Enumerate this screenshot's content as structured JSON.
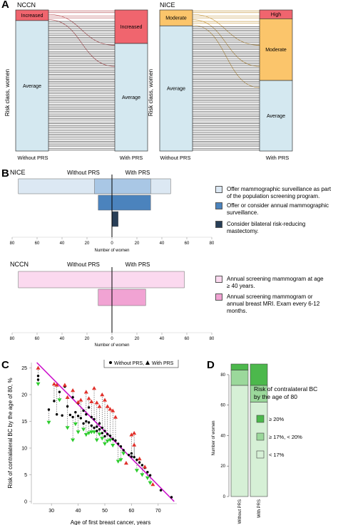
{
  "panels": {
    "a": "A",
    "b": "B",
    "c": "C",
    "d": "D"
  },
  "sankey": {
    "ylabel": "Risk class, women",
    "without": "Without PRS",
    "with": "With PRS",
    "nccn": {
      "title": "NCCN",
      "left": [
        {
          "label": "Increased",
          "count": 6,
          "color": "#f0656e"
        },
        {
          "label": "Average",
          "count": 74,
          "color": "#d4e8f0"
        }
      ],
      "right": [
        {
          "label": "Increased",
          "count": 19,
          "color": "#f0656e"
        },
        {
          "label": "Average",
          "count": 61,
          "color": "#d4e8f0"
        }
      ]
    },
    "nice": {
      "title": "NICE",
      "left": [
        {
          "label": "Moderate",
          "count": 9,
          "color": "#fbc56b"
        },
        {
          "label": "Average",
          "count": 71,
          "color": "#d4e8f0"
        }
      ],
      "right": [
        {
          "label": "High",
          "count": 5,
          "color": "#f0656e"
        },
        {
          "label": "Moderate",
          "count": 35,
          "color": "#fbc56b"
        },
        {
          "label": "Average",
          "count": 40,
          "color": "#d4e8f0"
        }
      ]
    }
  },
  "bars_b": {
    "without": "Without PRS",
    "with": "With PRS",
    "xlabel": "Number of women",
    "ticks": [
      "80",
      "60",
      "40",
      "20",
      "0",
      "20",
      "40",
      "60",
      "80"
    ],
    "nice": {
      "title": "NICE",
      "legend": [
        {
          "label": "Offer mammographic surveillance as part of the population screening program.",
          "color": "#dce8f3"
        },
        {
          "label": "Offer or consider annual mammographic surveillance.",
          "color": "#4b83bd"
        },
        {
          "label": "Consider bilateral risk-reducing mastectomy.",
          "color": "#273e57"
        }
      ]
    },
    "nccn": {
      "title": "NCCN",
      "legend": [
        {
          "label": "Annual screening mammogram at age ≥ 40 years.",
          "color": "#fbd9ef"
        },
        {
          "label": "Annual screening mammogram or annual breast MRI. Exam every 6-12 months.",
          "color": "#f1a3d3"
        }
      ]
    }
  },
  "scatter_c": {
    "xlabel": "Age of first breast cancer, years",
    "ylabel": "Risk of contralateral BC by the age of 80, %",
    "legend_without": "Without PRS,",
    "legend_with": "With PRS",
    "xticks": [
      "30",
      "40",
      "50",
      "60",
      "70"
    ],
    "yticks": [
      "0",
      "5",
      "10",
      "15",
      "20",
      "25"
    ]
  },
  "stack_d": {
    "ylabel": "Number of women",
    "categories": [
      "Without PRS",
      "With PRS"
    ],
    "yticks": [
      "0",
      "20",
      "40",
      "60",
      "80"
    ],
    "legend_title": "Risk of contralateral BC by the age of 80",
    "legend": [
      {
        "label": "≥ 20%",
        "color": "#4cb84c"
      },
      {
        "label": "≥ 17%, < 20%",
        "color": "#9bd89b"
      },
      {
        "label": "< 17%",
        "color": "#d6f0d6"
      }
    ]
  },
  "chart_data": [
    {
      "type": "bar",
      "title": "NCCN",
      "ylabel": "Risk class, women",
      "categories": [
        "Without PRS",
        "With PRS"
      ],
      "series": [
        {
          "name": "Increased",
          "values": [
            6,
            19
          ]
        },
        {
          "name": "Average",
          "values": [
            74,
            61
          ]
        }
      ]
    },
    {
      "type": "bar",
      "title": "NICE",
      "ylabel": "Risk class, women",
      "categories": [
        "Without PRS",
        "With PRS"
      ],
      "series": [
        {
          "name": "High",
          "values": [
            0,
            5
          ]
        },
        {
          "name": "Moderate",
          "values": [
            9,
            35
          ]
        },
        {
          "name": "Average",
          "values": [
            71,
            40
          ]
        }
      ]
    },
    {
      "type": "bar",
      "title": "NICE",
      "xlabel": "Number of women",
      "xlim": [
        -80,
        80
      ],
      "categories": [
        "Offer mammographic surveillance as part of the population screening program.",
        "Offer or consider annual mammographic surveillance.",
        "Consider bilateral risk-reducing mastectomy."
      ],
      "series": [
        {
          "name": "Without PRS",
          "values": [
            75,
            11,
            0
          ]
        },
        {
          "name": "With PRS",
          "values": [
            47,
            31,
            5
          ]
        }
      ]
    },
    {
      "type": "bar",
      "title": "NCCN",
      "xlabel": "Number of women",
      "xlim": [
        -80,
        80
      ],
      "categories": [
        "Annual screening mammogram at age ≥ 40 years.",
        "Annual screening mammogram or annual breast MRI. Exam every 6-12 months."
      ],
      "series": [
        {
          "name": "Without PRS",
          "values": [
            75,
            11
          ]
        },
        {
          "name": "With PRS",
          "values": [
            58,
            27
          ]
        }
      ]
    },
    {
      "type": "scatter",
      "xlabel": "Age of first breast cancer, years",
      "ylabel": "Risk of contralateral BC by the age of 80, %",
      "xlim": [
        23,
        77
      ],
      "ylim": [
        0,
        26
      ],
      "series": [
        {
          "name": "Without PRS",
          "points": [
            [
              25,
              23.5
            ],
            [
              25,
              22.8
            ],
            [
              29,
              17.2
            ],
            [
              31,
              18.8
            ],
            [
              32,
              16.3
            ],
            [
              33,
              20.5
            ],
            [
              34,
              16.1
            ],
            [
              35,
              21.5
            ],
            [
              36,
              17.8
            ],
            [
              37,
              16.2
            ],
            [
              38,
              15.8
            ],
            [
              38,
              19.5
            ],
            [
              39,
              16.7
            ],
            [
              40,
              16.0
            ],
            [
              40,
              18.4
            ],
            [
              41,
              15.6
            ],
            [
              42,
              17.0
            ],
            [
              42,
              14.6
            ],
            [
              43,
              16.3
            ],
            [
              43,
              15.0
            ],
            [
              44,
              14.8
            ],
            [
              44,
              17.6
            ],
            [
              45,
              14.2
            ],
            [
              45,
              15.8
            ],
            [
              46,
              13.8
            ],
            [
              46,
              15.4
            ],
            [
              47,
              14.0
            ],
            [
              47,
              13.2
            ],
            [
              48,
              13.5
            ],
            [
              48,
              14.6
            ],
            [
              49,
              12.8
            ],
            [
              49,
              13.8
            ],
            [
              50,
              13.2
            ],
            [
              50,
              12.2
            ],
            [
              51,
              12.6
            ],
            [
              52,
              12.3
            ],
            [
              53,
              11.7
            ],
            [
              54,
              11.4
            ],
            [
              55,
              10.8
            ],
            [
              56,
              10.3
            ],
            [
              57,
              9.6
            ],
            [
              59,
              8.7
            ],
            [
              60,
              9.0
            ],
            [
              60,
              8.4
            ],
            [
              61,
              8.3
            ],
            [
              62,
              7.8
            ],
            [
              63,
              7.3
            ],
            [
              64,
              6.8
            ],
            [
              65,
              6.3
            ],
            [
              66,
              5.5
            ],
            [
              67,
              4.9
            ],
            [
              71,
              2.1
            ],
            [
              75,
              0.8
            ]
          ]
        },
        {
          "name": "With PRS",
          "points": [
            [
              25,
              25.0
            ],
            [
              25,
              22.0
            ],
            [
              29,
              14.8
            ],
            [
              31,
              22.0
            ],
            [
              32,
              21.8
            ],
            [
              33,
              19.0
            ],
            [
              35,
              21.8
            ],
            [
              36,
              19.5
            ],
            [
              36,
              13.8
            ],
            [
              38,
              20.8
            ],
            [
              38,
              11.5
            ],
            [
              39,
              14.5
            ],
            [
              40,
              18.6
            ],
            [
              40,
              13.0
            ],
            [
              41,
              19.0
            ],
            [
              42,
              13.5
            ],
            [
              43,
              20.5
            ],
            [
              43,
              12.5
            ],
            [
              44,
              19.3
            ],
            [
              44,
              12.8
            ],
            [
              45,
              18.7
            ],
            [
              45,
              13.0
            ],
            [
              46,
              21.2
            ],
            [
              46,
              13.0
            ],
            [
              47,
              18.5
            ],
            [
              47,
              11.5
            ],
            [
              48,
              17.8
            ],
            [
              48,
              12.6
            ],
            [
              49,
              20.0
            ],
            [
              49,
              11.8
            ],
            [
              50,
              19.0
            ],
            [
              50,
              10.8
            ],
            [
              51,
              17.8
            ],
            [
              51,
              11.3
            ],
            [
              52,
              17.3
            ],
            [
              52,
              11.5
            ],
            [
              53,
              17.0
            ],
            [
              53,
              10.5
            ],
            [
              54,
              15.8
            ],
            [
              55,
              7.5
            ],
            [
              56,
              7.8
            ],
            [
              57,
              9.0
            ],
            [
              58,
              7.2
            ],
            [
              60,
              12.5
            ],
            [
              61,
              12.8
            ],
            [
              61,
              10.6
            ],
            [
              62,
              5.8
            ],
            [
              63,
              8.0
            ],
            [
              64,
              5.0
            ],
            [
              65,
              6.5
            ],
            [
              66,
              4.4
            ],
            [
              67,
              3.5
            ],
            [
              68,
              3.2
            ]
          ]
        }
      ]
    },
    {
      "type": "bar",
      "ylabel": "Number of women",
      "categories": [
        "Without PRS",
        "With PRS"
      ],
      "ylim": [
        0,
        87
      ],
      "series": [
        {
          "name": "< 17%",
          "values": [
            73,
            62
          ]
        },
        {
          "name": "≥ 17%, < 20%",
          "values": [
            10,
            11
          ]
        },
        {
          "name": "≥ 20%",
          "values": [
            4,
            14
          ]
        }
      ]
    }
  ]
}
